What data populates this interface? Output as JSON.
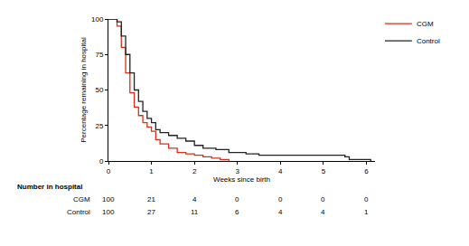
{
  "chart_data": {
    "type": "line",
    "x_label": "Weeks since birth",
    "y_label": "Percentage remaining in hospital",
    "xlim": [
      0,
      6.2
    ],
    "ylim": [
      0,
      100
    ],
    "xticks": [
      0,
      1,
      2,
      3,
      4,
      5,
      6
    ],
    "yticks": [
      0,
      25,
      50,
      75,
      100
    ],
    "grid": false,
    "legend": "top right",
    "series": [
      {
        "name": "CGM",
        "color": "#d7301f",
        "x": [
          0,
          0.15,
          0.2,
          0.3,
          0.4,
          0.5,
          0.6,
          0.7,
          0.8,
          0.9,
          1.0,
          1.1,
          1.2,
          1.4,
          1.6,
          1.8,
          2.0,
          2.2,
          2.4,
          2.6,
          2.8
        ],
        "values": [
          100,
          100,
          95,
          80,
          62,
          48,
          38,
          32,
          27,
          24,
          21,
          15,
          12,
          9,
          6,
          5,
          4,
          3,
          2,
          1,
          0
        ]
      },
      {
        "name": "Control",
        "color": "#222222",
        "x": [
          0,
          0.15,
          0.2,
          0.3,
          0.4,
          0.5,
          0.6,
          0.7,
          0.8,
          0.9,
          1.0,
          1.1,
          1.2,
          1.4,
          1.6,
          1.8,
          2.0,
          2.2,
          2.5,
          2.8,
          3.2,
          3.5,
          5.5,
          5.6,
          6.1
        ],
        "values": [
          100,
          100,
          98,
          88,
          75,
          62,
          50,
          42,
          35,
          30,
          27,
          22,
          20,
          18,
          16,
          14,
          11,
          9,
          8,
          6,
          5,
          4,
          3,
          1,
          0
        ]
      }
    ],
    "risk_table": {
      "title": "Number in hospital",
      "x": [
        0,
        1,
        2,
        3,
        4,
        5,
        6
      ],
      "rows": [
        {
          "name": "CGM",
          "values": [
            100,
            21,
            4,
            0,
            0,
            0,
            0
          ]
        },
        {
          "name": "Control",
          "values": [
            100,
            27,
            11,
            6,
            4,
            4,
            1
          ]
        }
      ]
    }
  }
}
